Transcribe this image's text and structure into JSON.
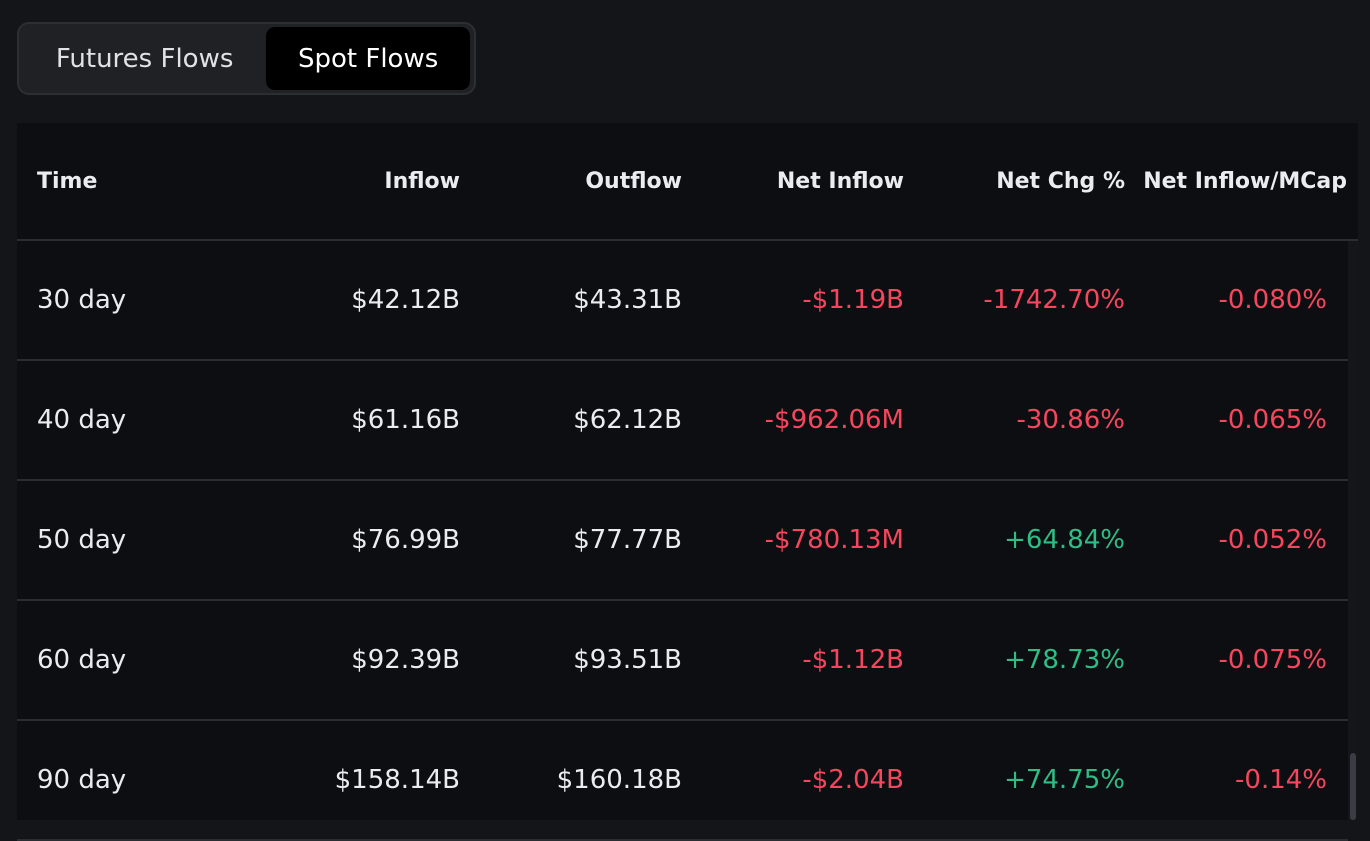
{
  "tabs": [
    {
      "label": "Futures Flows",
      "active": false
    },
    {
      "label": "Spot Flows",
      "active": true
    }
  ],
  "table": {
    "headers": {
      "time": "Time",
      "inflow": "Inflow",
      "outflow": "Outflow",
      "net_inflow": "Net Inflow",
      "net_chg": "Net Chg %",
      "net_mcap": "Net Inflow/MCap"
    },
    "rows": [
      {
        "time": "30 day",
        "inflow": "$42.12B",
        "outflow": "$43.31B",
        "net_inflow": "-$1.19B",
        "net_chg": "-1742.70%",
        "net_mcap": "-0.080%"
      },
      {
        "time": "40 day",
        "inflow": "$61.16B",
        "outflow": "$62.12B",
        "net_inflow": "-$962.06M",
        "net_chg": "-30.86%",
        "net_mcap": "-0.065%"
      },
      {
        "time": "50 day",
        "inflow": "$76.99B",
        "outflow": "$77.77B",
        "net_inflow": "-$780.13M",
        "net_chg": "+64.84%",
        "net_mcap": "-0.052%"
      },
      {
        "time": "60 day",
        "inflow": "$92.39B",
        "outflow": "$93.51B",
        "net_inflow": "-$1.12B",
        "net_chg": "+78.73%",
        "net_mcap": "-0.075%"
      },
      {
        "time": "90 day",
        "inflow": "$158.14B",
        "outflow": "$160.18B",
        "net_inflow": "-$2.04B",
        "net_chg": "+74.75%",
        "net_mcap": "-0.14%"
      }
    ]
  },
  "colors": {
    "negative": "#f6465d",
    "positive": "#2ebd85",
    "background": "#0d0e12"
  }
}
